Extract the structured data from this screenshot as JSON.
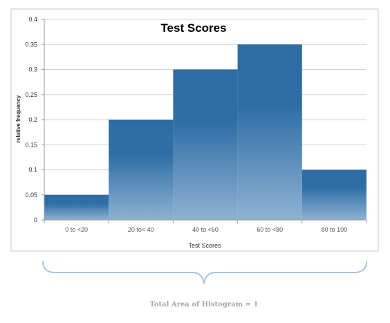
{
  "chart_data": {
    "type": "bar",
    "title": "Test Scores",
    "xlabel": "Test Scores",
    "ylabel": "relative frequency",
    "categories": [
      "0 to <20",
      "20 to< 40",
      "40 to <60",
      "60 to <80",
      "80 to 100"
    ],
    "values": [
      0.05,
      0.2,
      0.3,
      0.35,
      0.1
    ],
    "ylim": [
      0,
      0.4
    ],
    "yticks": [
      "0",
      "0.05",
      "0.1",
      "0.15",
      "0.2",
      "0.25",
      "0.3",
      "0.35",
      "0.4"
    ],
    "grid": true,
    "legend": "none",
    "bar_color_top": "#2e6da4",
    "bar_color_bottom": "#8eb2d3"
  },
  "annotation": {
    "caption": "Total Area of Histogram = 1",
    "brace_color": "#a9c6dd"
  }
}
